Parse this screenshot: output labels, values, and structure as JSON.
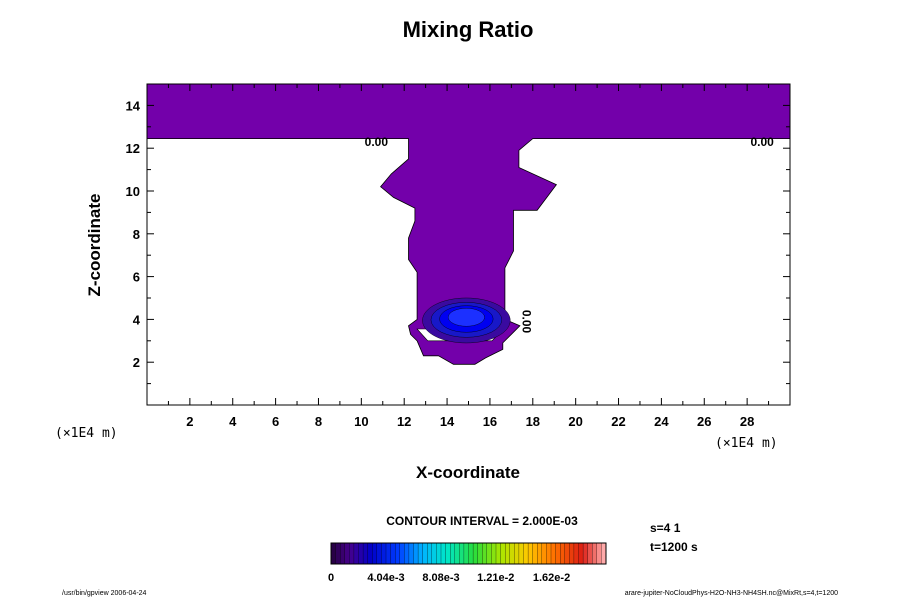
{
  "chart_data": {
    "type": "contour",
    "title": "Mixing Ratio",
    "xlabel": "X-coordinate",
    "ylabel": "Z-coordinate",
    "x_unit": "(×1E4 m)",
    "y_unit": "(×1E4 m)",
    "xlim": [
      0,
      30
    ],
    "ylim": [
      0,
      15
    ],
    "x_ticks": [
      2,
      4,
      6,
      8,
      10,
      12,
      14,
      16,
      18,
      20,
      22,
      24,
      26,
      28
    ],
    "y_ticks": [
      2,
      4,
      6,
      8,
      10,
      12,
      14
    ],
    "fill_color": "#7300aa",
    "band_colors": [
      "#3a0aa0",
      "#1818c8",
      "#0000f0",
      "#1c30ff"
    ],
    "contour_labels": [
      {
        "text": "0.00",
        "x": 10.7,
        "z": 12.3
      },
      {
        "text": "0.00",
        "x": 28.7,
        "z": 12.3
      },
      {
        "text": "0.00",
        "x": 17.7,
        "z": 3.9
      }
    ],
    "contour_interval": "CONTOUR INTERVAL = 2.000E-03",
    "colorbar": {
      "min": 0,
      "max": 0.0202,
      "tick_labels": [
        "0",
        "4.04e-3",
        "8.08e-3",
        "1.21e-2",
        "1.62e-2"
      ],
      "tick_values": [
        0,
        0.00404,
        0.00808,
        0.0121,
        0.0162
      ]
    },
    "info": [
      "s=4 1",
      "t=1200 s"
    ],
    "footer_left": "/usr/bin/gpview 2006-04-24",
    "footer_right": "arare-jupiter-NoCloudPhys-H2O-NH3-NH4SH.nc@MixRt,s=4,t=1200"
  }
}
